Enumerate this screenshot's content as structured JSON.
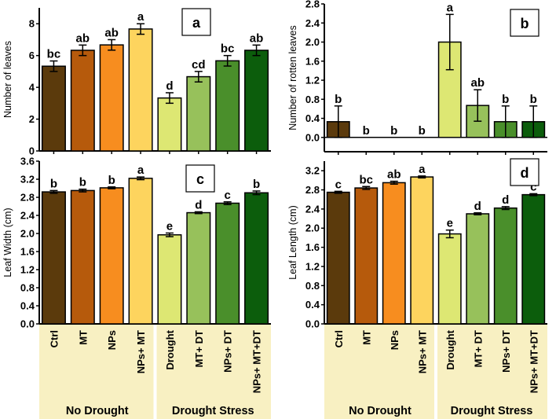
{
  "categories": [
    "Ctrl",
    "MT",
    "NPs",
    "NPs+ MT",
    "Drought",
    "MT+ DT",
    "NPs+ DT",
    "NPs+ MT+DT"
  ],
  "groups": [
    "No Drought",
    "Drought Stress"
  ],
  "colors": [
    "#5b3a0c",
    "#b65a0c",
    "#f78d1f",
    "#fdd45e",
    "#dde773",
    "#97c15b",
    "#4a8f2b",
    "#0c5d0c"
  ],
  "chart_data": [
    {
      "type": "bar",
      "panel": "a",
      "ylabel": "Number of leaves",
      "ylim": [
        0,
        9
      ],
      "yticks": [
        0,
        2,
        4,
        6,
        8
      ],
      "values": [
        5.33,
        6.33,
        6.67,
        7.67,
        3.33,
        4.67,
        5.67,
        6.33
      ],
      "errors": [
        0.33,
        0.33,
        0.33,
        0.33,
        0.33,
        0.33,
        0.33,
        0.33
      ],
      "letters": [
        "bc",
        "ab",
        "ab",
        "a",
        "d",
        "cd",
        "bc",
        "ab"
      ]
    },
    {
      "type": "bar",
      "panel": "b",
      "ylabel": "Number of rotten leaves",
      "ylim": [
        -0.3,
        2.8
      ],
      "yticks": [
        "0.0",
        "0.4",
        "0.8",
        "1.2",
        "1.6",
        "2.0",
        "2.4",
        "2.8"
      ],
      "values": [
        0.33,
        0,
        0,
        0,
        2.0,
        0.67,
        0.33,
        0.33
      ],
      "errors": [
        0.33,
        0,
        0,
        0,
        0.58,
        0.33,
        0.33,
        0.33
      ],
      "letters": [
        "b",
        "b",
        "b",
        "b",
        "a",
        "ab",
        "b",
        "b"
      ]
    },
    {
      "type": "bar",
      "panel": "c",
      "ylabel": "Leaf Width (cm)",
      "ylim": [
        0,
        3.6
      ],
      "yticks": [
        "0.0",
        "0.4",
        "0.8",
        "1.2",
        "1.6",
        "2.0",
        "2.4",
        "2.8",
        "3.2",
        "3.6"
      ],
      "values": [
        2.92,
        2.95,
        3.01,
        3.22,
        1.97,
        2.46,
        2.67,
        2.9
      ],
      "errors": [
        0.03,
        0.03,
        0.02,
        0.03,
        0.04,
        0.02,
        0.03,
        0.04
      ],
      "letters": [
        "b",
        "b",
        "b",
        "a",
        "e",
        "d",
        "c",
        "b"
      ]
    },
    {
      "type": "bar",
      "panel": "d",
      "ylabel": "Leaf Length (cm)",
      "ylim": [
        0,
        3.4
      ],
      "yticks": [
        "0.0",
        "0.4",
        "0.8",
        "1.2",
        "1.6",
        "2.0",
        "2.4",
        "2.8",
        "3.2"
      ],
      "values": [
        2.75,
        2.84,
        2.95,
        3.07,
        1.88,
        2.3,
        2.42,
        2.7
      ],
      "errors": [
        0.02,
        0.03,
        0.03,
        0.02,
        0.08,
        0.02,
        0.03,
        0.02
      ],
      "letters": [
        "c",
        "bc",
        "ab",
        "a",
        "e",
        "d",
        "d",
        "c"
      ]
    }
  ]
}
